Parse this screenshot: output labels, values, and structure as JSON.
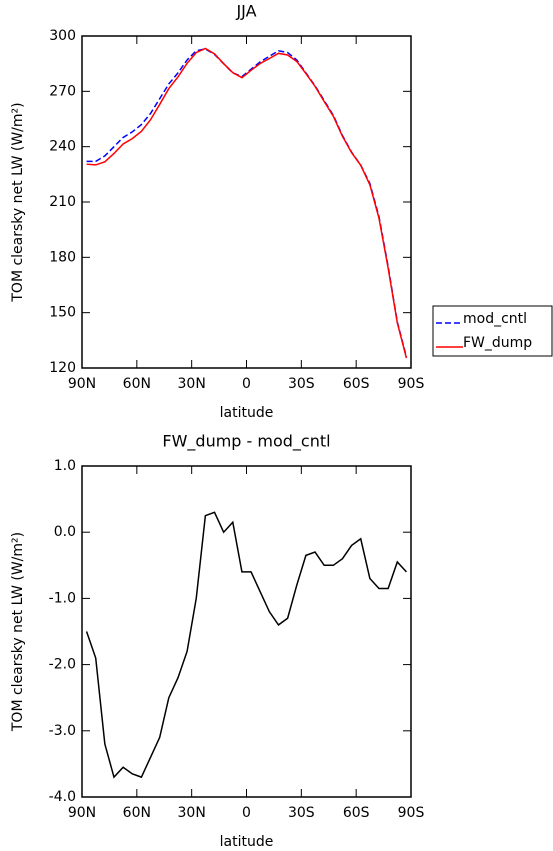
{
  "chart_data": [
    {
      "type": "line",
      "title": "JJA",
      "xlabel": "latitude",
      "ylabel": "TOM clearsky net LW (W/m²)",
      "x": [
        87.5,
        82.5,
        77.5,
        72.5,
        67.5,
        62.5,
        57.5,
        52.5,
        47.5,
        42.5,
        37.5,
        32.5,
        27.5,
        22.5,
        17.5,
        12.5,
        7.5,
        2.5,
        -2.5,
        -7.5,
        -12.5,
        -17.5,
        -22.5,
        -27.5,
        -32.5,
        -37.5,
        -42.5,
        -47.5,
        -52.5,
        -57.5,
        -62.5,
        -67.5,
        -72.5,
        -77.5,
        -82.5,
        -87.5
      ],
      "series": [
        {
          "name": "mod_cntl",
          "color": "#0000ff",
          "dash": true,
          "values": [
            232,
            232,
            235,
            240,
            245,
            248,
            252,
            258,
            266,
            274,
            280,
            287,
            292,
            293,
            290,
            285,
            280,
            278,
            282,
            286,
            289,
            292,
            291,
            287,
            280,
            273,
            265,
            257,
            246,
            237,
            230,
            220,
            202,
            175,
            145,
            126
          ]
        },
        {
          "name": "FW_dump",
          "color": "#ff0000",
          "dash": false,
          "values": [
            230.5,
            230.1,
            231.8,
            236.3,
            241.45,
            244.35,
            248.3,
            254.6,
            262.9,
            271.5,
            277.8,
            285.2,
            291,
            293.25,
            290.3,
            285,
            280.15,
            277.4,
            281.4,
            285.1,
            287.8,
            290.6,
            289.7,
            286.2,
            279.65,
            272.7,
            264.5,
            256.5,
            245.6,
            236.8,
            229.9,
            219.3,
            201.15,
            174.15,
            144.55,
            125.4
          ]
        }
      ],
      "xlim": [
        90,
        -90
      ],
      "xticks": [
        {
          "value": 90,
          "label": "90N"
        },
        {
          "value": 60,
          "label": "60N"
        },
        {
          "value": 30,
          "label": "30N"
        },
        0,
        {
          "value": -30,
          "label": "30S"
        },
        {
          "value": -60,
          "label": "60S"
        },
        {
          "value": -90,
          "label": "90S"
        }
      ],
      "ylim": [
        120,
        300
      ],
      "yticks": [
        120,
        150,
        180,
        210,
        240,
        270,
        300
      ],
      "legend": "right"
    },
    {
      "type": "line",
      "title": "FW_dump - mod_cntl",
      "xlabel": "latitude",
      "ylabel": "TOM clearsky net LW (W/m²)",
      "x": [
        87.5,
        82.5,
        77.5,
        72.5,
        67.5,
        62.5,
        57.5,
        52.5,
        47.5,
        42.5,
        37.5,
        32.5,
        27.5,
        22.5,
        17.5,
        12.5,
        7.5,
        2.5,
        -2.5,
        -7.5,
        -12.5,
        -17.5,
        -22.5,
        -27.5,
        -32.5,
        -37.5,
        -42.5,
        -47.5,
        -52.5,
        -57.5,
        -62.5,
        -67.5,
        -72.5,
        -77.5,
        -82.5,
        -87.5
      ],
      "series": [
        {
          "color": "#000000",
          "dash": false,
          "values": [
            -1.5,
            -1.9,
            -3.2,
            -3.7,
            -3.55,
            -3.65,
            -3.7,
            -3.4,
            -3.1,
            -2.5,
            -2.2,
            -1.8,
            -1.0,
            0.25,
            0.3,
            0.0,
            0.15,
            -0.6,
            -0.6,
            -0.9,
            -1.2,
            -1.4,
            -1.3,
            -0.8,
            -0.35,
            -0.3,
            -0.5,
            -0.5,
            -0.4,
            -0.2,
            -0.1,
            -0.7,
            -0.85,
            -0.85,
            -0.45,
            -0.6
          ]
        }
      ],
      "xlim": [
        90,
        -90
      ],
      "xticks": [
        {
          "value": 90,
          "label": "90N"
        },
        {
          "value": 60,
          "label": "60N"
        },
        {
          "value": 30,
          "label": "30N"
        },
        0,
        {
          "value": -30,
          "label": "30S"
        },
        {
          "value": -60,
          "label": "60S"
        },
        {
          "value": -90,
          "label": "90S"
        }
      ],
      "ylim": [
        -4,
        1
      ],
      "yticks": [
        {
          "value": -4,
          "label": "-4.0"
        },
        {
          "value": -3,
          "label": "-3.0"
        },
        {
          "value": -2,
          "label": "-2.0"
        },
        {
          "value": -1,
          "label": "-1.0"
        },
        {
          "value": 0,
          "label": "0.0"
        },
        {
          "value": 1,
          "label": "1.0"
        }
      ]
    }
  ]
}
